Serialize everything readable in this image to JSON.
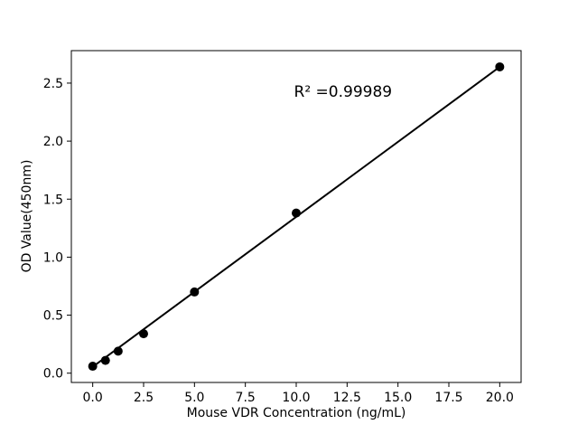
{
  "figure": {
    "background": "#ffffff",
    "foreground": "#000000"
  },
  "chart_data": {
    "type": "scatter",
    "title": "",
    "xlabel": "Mouse VDR Concentration (ng/mL)",
    "ylabel": "OD Value(450nm)",
    "annotation": {
      "text": "R² =0.99989",
      "x": 12.3,
      "y": 2.42
    },
    "x": [
      0,
      0.625,
      1.25,
      2.5,
      5,
      10,
      20
    ],
    "y": [
      0.06,
      0.11,
      0.19,
      0.34,
      0.7,
      1.38,
      2.64
    ],
    "fit_line": {
      "x_start": 0,
      "y_start": 0.055,
      "x_end": 20,
      "y_end": 2.64
    },
    "xticks": [
      0.0,
      2.5,
      5.0,
      7.5,
      10.0,
      12.5,
      15.0,
      17.5,
      20.0
    ],
    "xtick_labels": [
      "0.0",
      "2.5",
      "5.0",
      "7.5",
      "10.0",
      "12.5",
      "15.0",
      "17.5",
      "20.0"
    ],
    "yticks": [
      0.0,
      0.5,
      1.0,
      1.5,
      2.0,
      2.5
    ],
    "ytick_labels": [
      "0.0",
      "0.5",
      "1.0",
      "1.5",
      "2.0",
      "2.5"
    ],
    "xlim": [
      -1.05,
      21.05
    ],
    "ylim": [
      -0.08,
      2.78
    ],
    "grid": false,
    "legend": false,
    "point_color": "#000000",
    "line_color": "#000000"
  }
}
